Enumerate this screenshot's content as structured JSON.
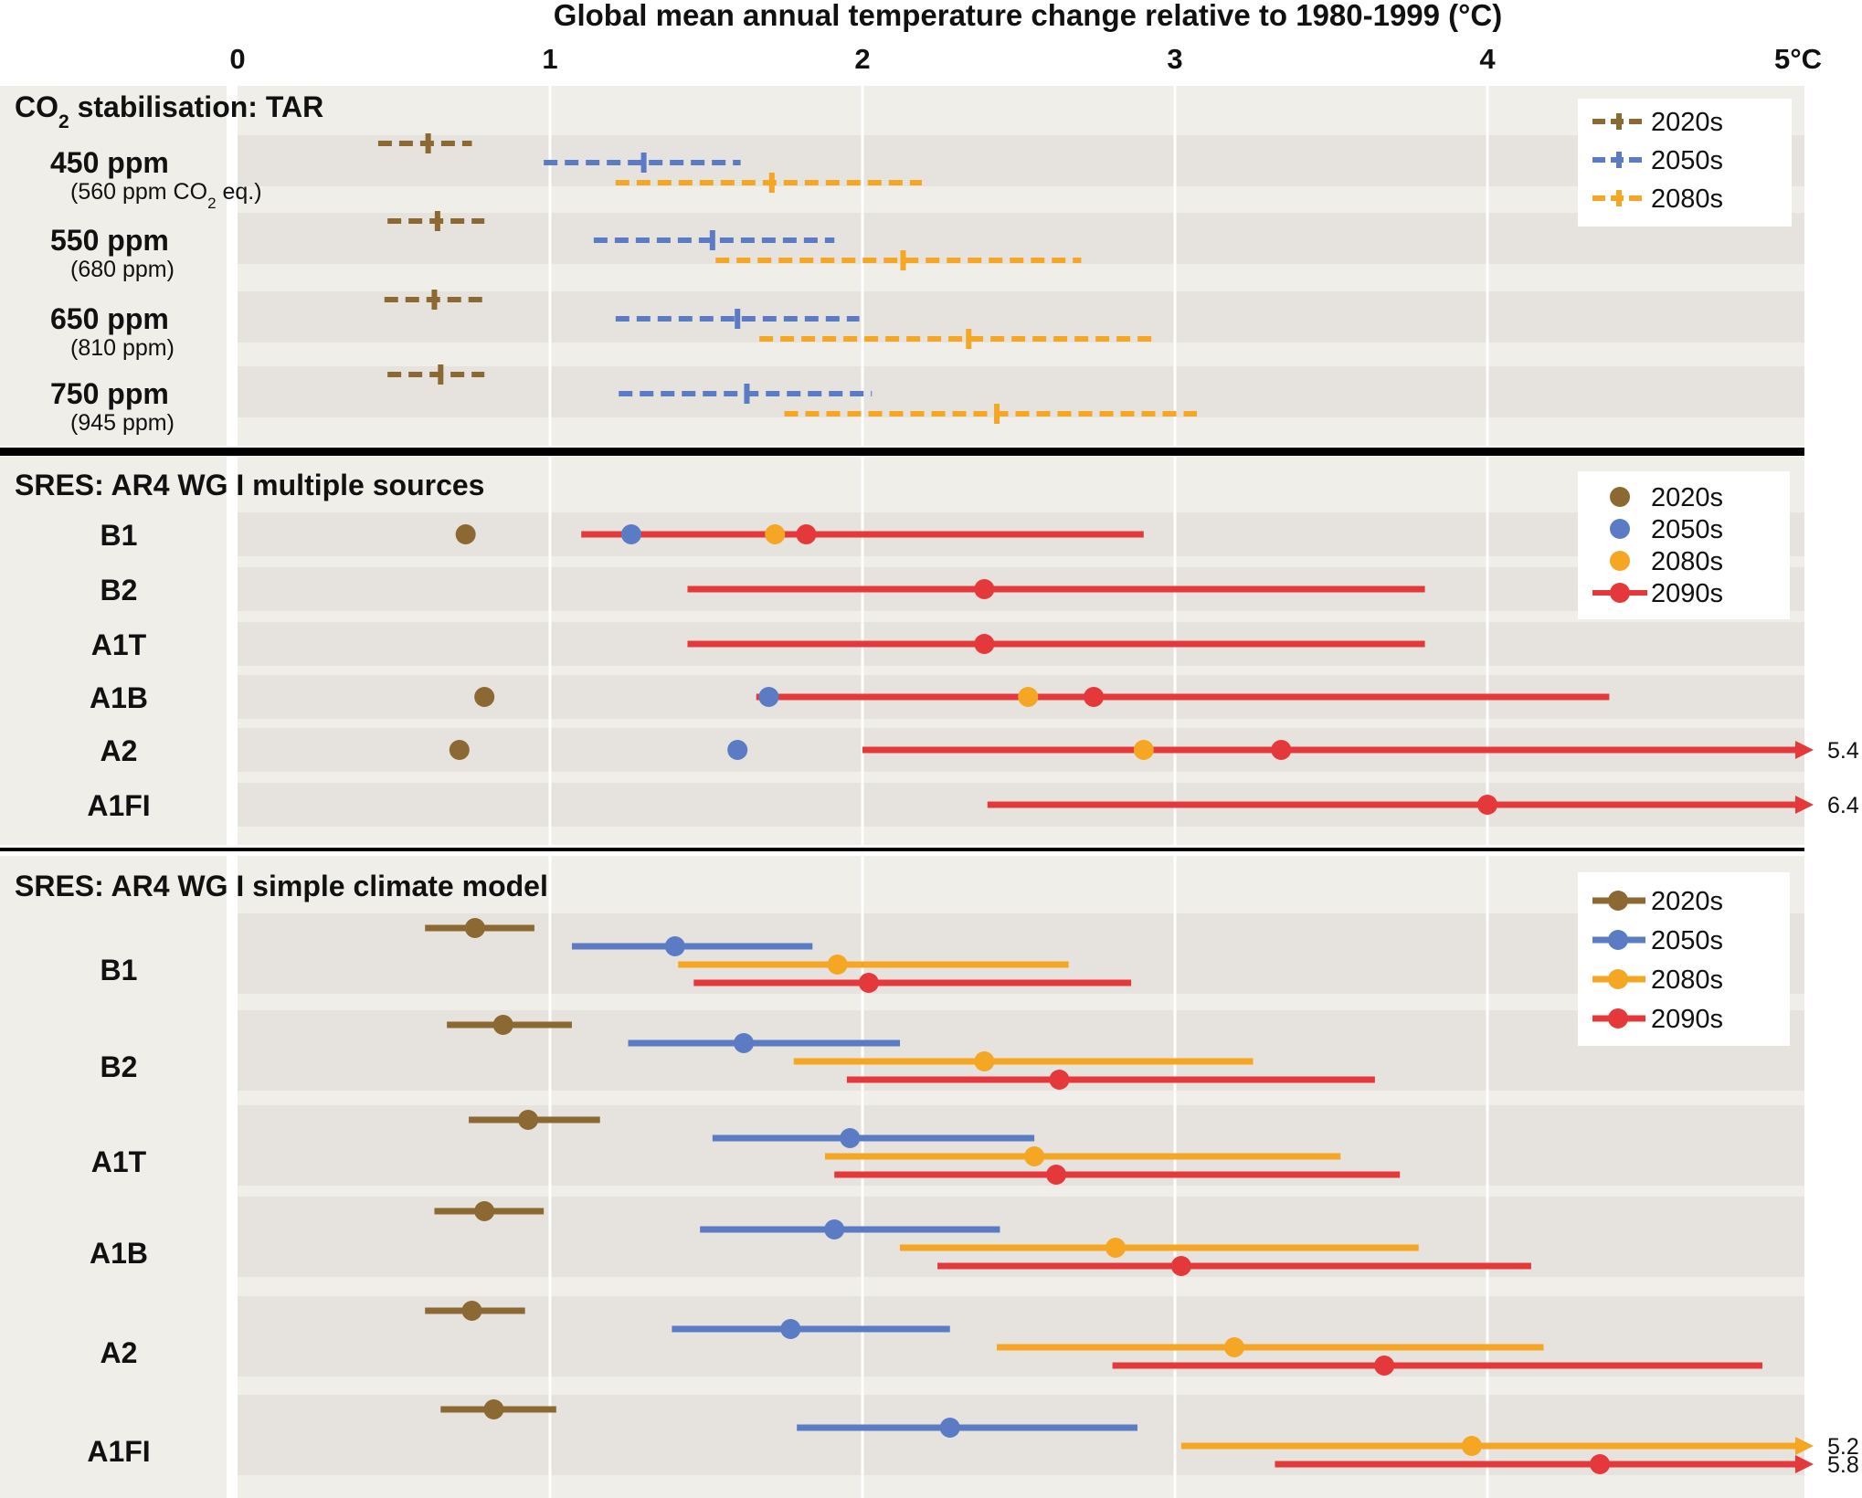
{
  "chart_data": {
    "type": "range-dot",
    "title": "Global mean annual temperature change relative to 1980-1999 (°C)",
    "x_ticks": [
      "0",
      "1",
      "2",
      "3",
      "4",
      "5°C"
    ],
    "xlim": [
      0,
      5
    ],
    "grid": "vertical",
    "colors": {
      "2020s": "#8c6833",
      "2050s": "#5b7bc4",
      "2080s": "#f5a623",
      "2090s": "#e5383b"
    },
    "panels": [
      {
        "title": "CO",
        "title_sub": "2",
        "title_rest": " stabilisation: TAR",
        "style": "dashed",
        "legend": [
          "2020s",
          "2050s",
          "2080s"
        ],
        "rows": [
          {
            "label": "450 ppm",
            "sublabel_a": "(560 ppm CO",
            "sublabel_sub": "2",
            "sublabel_b": " eq.)",
            "series": [
              {
                "name": "2020s",
                "low": 0.45,
                "mid": 0.61,
                "high": 0.75
              },
              {
                "name": "2050s",
                "low": 0.98,
                "mid": 1.3,
                "high": 1.61
              },
              {
                "name": "2080s",
                "low": 1.21,
                "mid": 1.71,
                "high": 2.19
              }
            ]
          },
          {
            "label": "550 ppm",
            "sublabel_a": "(680 ppm)",
            "series": [
              {
                "name": "2020s",
                "low": 0.48,
                "mid": 0.64,
                "high": 0.79
              },
              {
                "name": "2050s",
                "low": 1.14,
                "mid": 1.52,
                "high": 1.91
              },
              {
                "name": "2080s",
                "low": 1.53,
                "mid": 2.13,
                "high": 2.7
              }
            ]
          },
          {
            "label": "650 ppm",
            "sublabel_a": "(810 ppm)",
            "series": [
              {
                "name": "2020s",
                "low": 0.47,
                "mid": 0.63,
                "high": 0.8
              },
              {
                "name": "2050s",
                "low": 1.21,
                "mid": 1.6,
                "high": 1.99
              },
              {
                "name": "2080s",
                "low": 1.67,
                "mid": 2.34,
                "high": 2.93
              }
            ]
          },
          {
            "label": "750 ppm",
            "sublabel_a": "(945 ppm)",
            "series": [
              {
                "name": "2020s",
                "low": 0.48,
                "mid": 0.65,
                "high": 0.79
              },
              {
                "name": "2050s",
                "low": 1.22,
                "mid": 1.63,
                "high": 2.03
              },
              {
                "name": "2080s",
                "low": 1.75,
                "mid": 2.43,
                "high": 3.07
              }
            ]
          }
        ]
      },
      {
        "title": "SRES: AR4 WG I multiple sources",
        "style": "points",
        "legend": [
          "2020s",
          "2050s",
          "2080s",
          "2090s"
        ],
        "rows": [
          {
            "label": "B1",
            "points": [
              {
                "name": "2020s",
                "mid": 0.73
              },
              {
                "name": "2050s",
                "mid": 1.26
              },
              {
                "name": "2080s",
                "mid": 1.72
              }
            ],
            "range": {
              "name": "2090s",
              "low": 1.1,
              "mid": 1.82,
              "high": 2.9
            }
          },
          {
            "label": "B2",
            "points": [],
            "range": {
              "name": "2090s",
              "low": 1.44,
              "mid": 2.39,
              "high": 3.8
            }
          },
          {
            "label": "A1T",
            "points": [],
            "range": {
              "name": "2090s",
              "low": 1.44,
              "mid": 2.39,
              "high": 3.8
            }
          },
          {
            "label": "A1B",
            "points": [
              {
                "name": "2020s",
                "mid": 0.79
              },
              {
                "name": "2050s",
                "mid": 1.7
              },
              {
                "name": "2080s",
                "mid": 2.53
              }
            ],
            "range": {
              "name": "2090s",
              "low": 1.66,
              "mid": 2.74,
              "high": 4.39
            }
          },
          {
            "label": "A2",
            "points": [
              {
                "name": "2020s",
                "mid": 0.71
              },
              {
                "name": "2050s",
                "mid": 1.6
              },
              {
                "name": "2080s",
                "mid": 2.9
              }
            ],
            "range": {
              "name": "2090s",
              "low": 2.0,
              "mid": 3.34,
              "high": 5.4,
              "overflow_label": "5.4"
            }
          },
          {
            "label": "A1FI",
            "points": [],
            "range": {
              "name": "2090s",
              "low": 2.4,
              "mid": 4.0,
              "high": 6.4,
              "overflow_label": "6.4"
            }
          }
        ]
      },
      {
        "title": "SRES: AR4 WG I simple climate model",
        "style": "solid",
        "legend": [
          "2020s",
          "2050s",
          "2080s",
          "2090s"
        ],
        "rows": [
          {
            "label": "B1",
            "series": [
              {
                "name": "2020s",
                "low": 0.6,
                "mid": 0.76,
                "high": 0.95
              },
              {
                "name": "2050s",
                "low": 1.07,
                "mid": 1.4,
                "high": 1.84
              },
              {
                "name": "2080s",
                "low": 1.41,
                "mid": 1.92,
                "high": 2.66
              },
              {
                "name": "2090s",
                "low": 1.46,
                "mid": 2.02,
                "high": 2.86
              }
            ]
          },
          {
            "label": "B2",
            "series": [
              {
                "name": "2020s",
                "low": 0.67,
                "mid": 0.85,
                "high": 1.07
              },
              {
                "name": "2050s",
                "low": 1.25,
                "mid": 1.62,
                "high": 2.12
              },
              {
                "name": "2080s",
                "low": 1.78,
                "mid": 2.39,
                "high": 3.25
              },
              {
                "name": "2090s",
                "low": 1.95,
                "mid": 2.63,
                "high": 3.64
              }
            ]
          },
          {
            "label": "A1T",
            "series": [
              {
                "name": "2020s",
                "low": 0.74,
                "mid": 0.93,
                "high": 1.16
              },
              {
                "name": "2050s",
                "low": 1.52,
                "mid": 1.96,
                "high": 2.55
              },
              {
                "name": "2080s",
                "low": 1.88,
                "mid": 2.55,
                "high": 3.53
              },
              {
                "name": "2090s",
                "low": 1.91,
                "mid": 2.62,
                "high": 3.72
              }
            ]
          },
          {
            "label": "A1B",
            "series": [
              {
                "name": "2020s",
                "low": 0.63,
                "mid": 0.79,
                "high": 0.98
              },
              {
                "name": "2050s",
                "low": 1.48,
                "mid": 1.91,
                "high": 2.44
              },
              {
                "name": "2080s",
                "low": 2.12,
                "mid": 2.81,
                "high": 3.78
              },
              {
                "name": "2090s",
                "low": 2.24,
                "mid": 3.02,
                "high": 4.14
              }
            ]
          },
          {
            "label": "A2",
            "series": [
              {
                "name": "2020s",
                "low": 0.6,
                "mid": 0.75,
                "high": 0.92
              },
              {
                "name": "2050s",
                "low": 1.39,
                "mid": 1.77,
                "high": 2.28
              },
              {
                "name": "2080s",
                "low": 2.43,
                "mid": 3.19,
                "high": 4.18
              },
              {
                "name": "2090s",
                "low": 2.8,
                "mid": 3.67,
                "high": 4.88
              }
            ]
          },
          {
            "label": "A1FI",
            "series": [
              {
                "name": "2020s",
                "low": 0.65,
                "mid": 0.82,
                "high": 1.02
              },
              {
                "name": "2050s",
                "low": 1.79,
                "mid": 2.28,
                "high": 2.88
              },
              {
                "name": "2080s",
                "low": 3.02,
                "mid": 3.95,
                "high": 5.2,
                "overflow_label": "5.2"
              },
              {
                "name": "2090s",
                "low": 3.32,
                "mid": 4.36,
                "high": 5.8,
                "overflow_label": "5.8"
              }
            ]
          }
        ]
      }
    ]
  }
}
